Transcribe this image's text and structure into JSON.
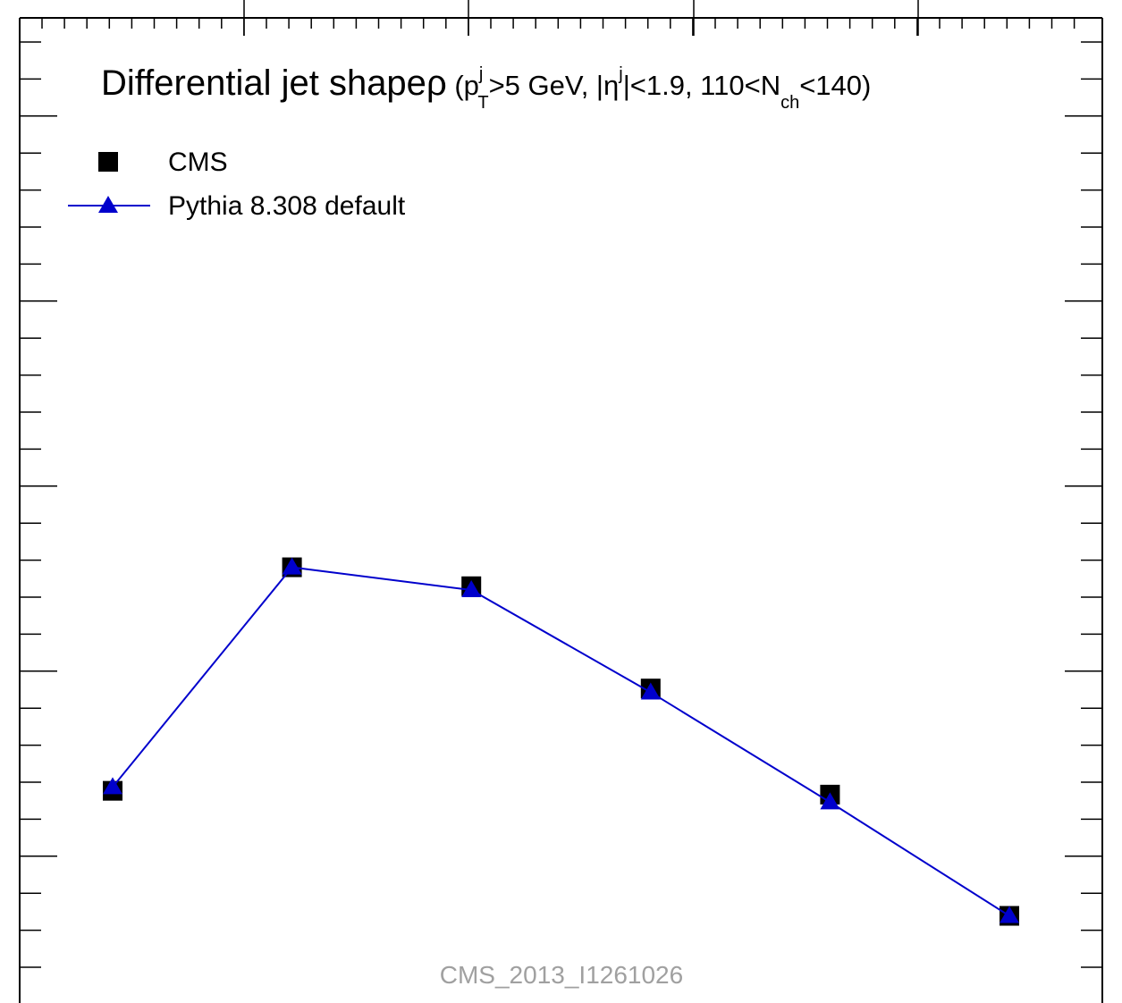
{
  "chart_data": {
    "type": "line",
    "title": {
      "main": "Differential jet shape",
      "rho": "ρ",
      "open": " (p",
      "pt_sup": "j",
      "pt_sub": "T",
      "mid1": ">5 GeV, |η",
      "eta_sup": "j",
      "mid2": "|<1.9, 110<N",
      "nch_sub": "ch",
      "close": "<140)"
    },
    "xlabel": "",
    "ylabel": "",
    "grid": false,
    "legend_position": "top-left",
    "watermark": "CMS_2013_I1261026",
    "x": [
      1,
      2,
      3,
      4,
      5,
      6
    ],
    "ylim": [
      0,
      26
    ],
    "series": [
      {
        "name": "CMS",
        "marker": "square",
        "color": "#000000",
        "values": [
          5.6,
          11.5,
          11.0,
          8.3,
          5.5,
          2.3
        ]
      },
      {
        "name": "Pythia 8.308 default",
        "marker": "triangle",
        "color": "#0000cc",
        "values": [
          5.7,
          11.5,
          10.9,
          8.2,
          5.3,
          2.3
        ]
      }
    ]
  }
}
